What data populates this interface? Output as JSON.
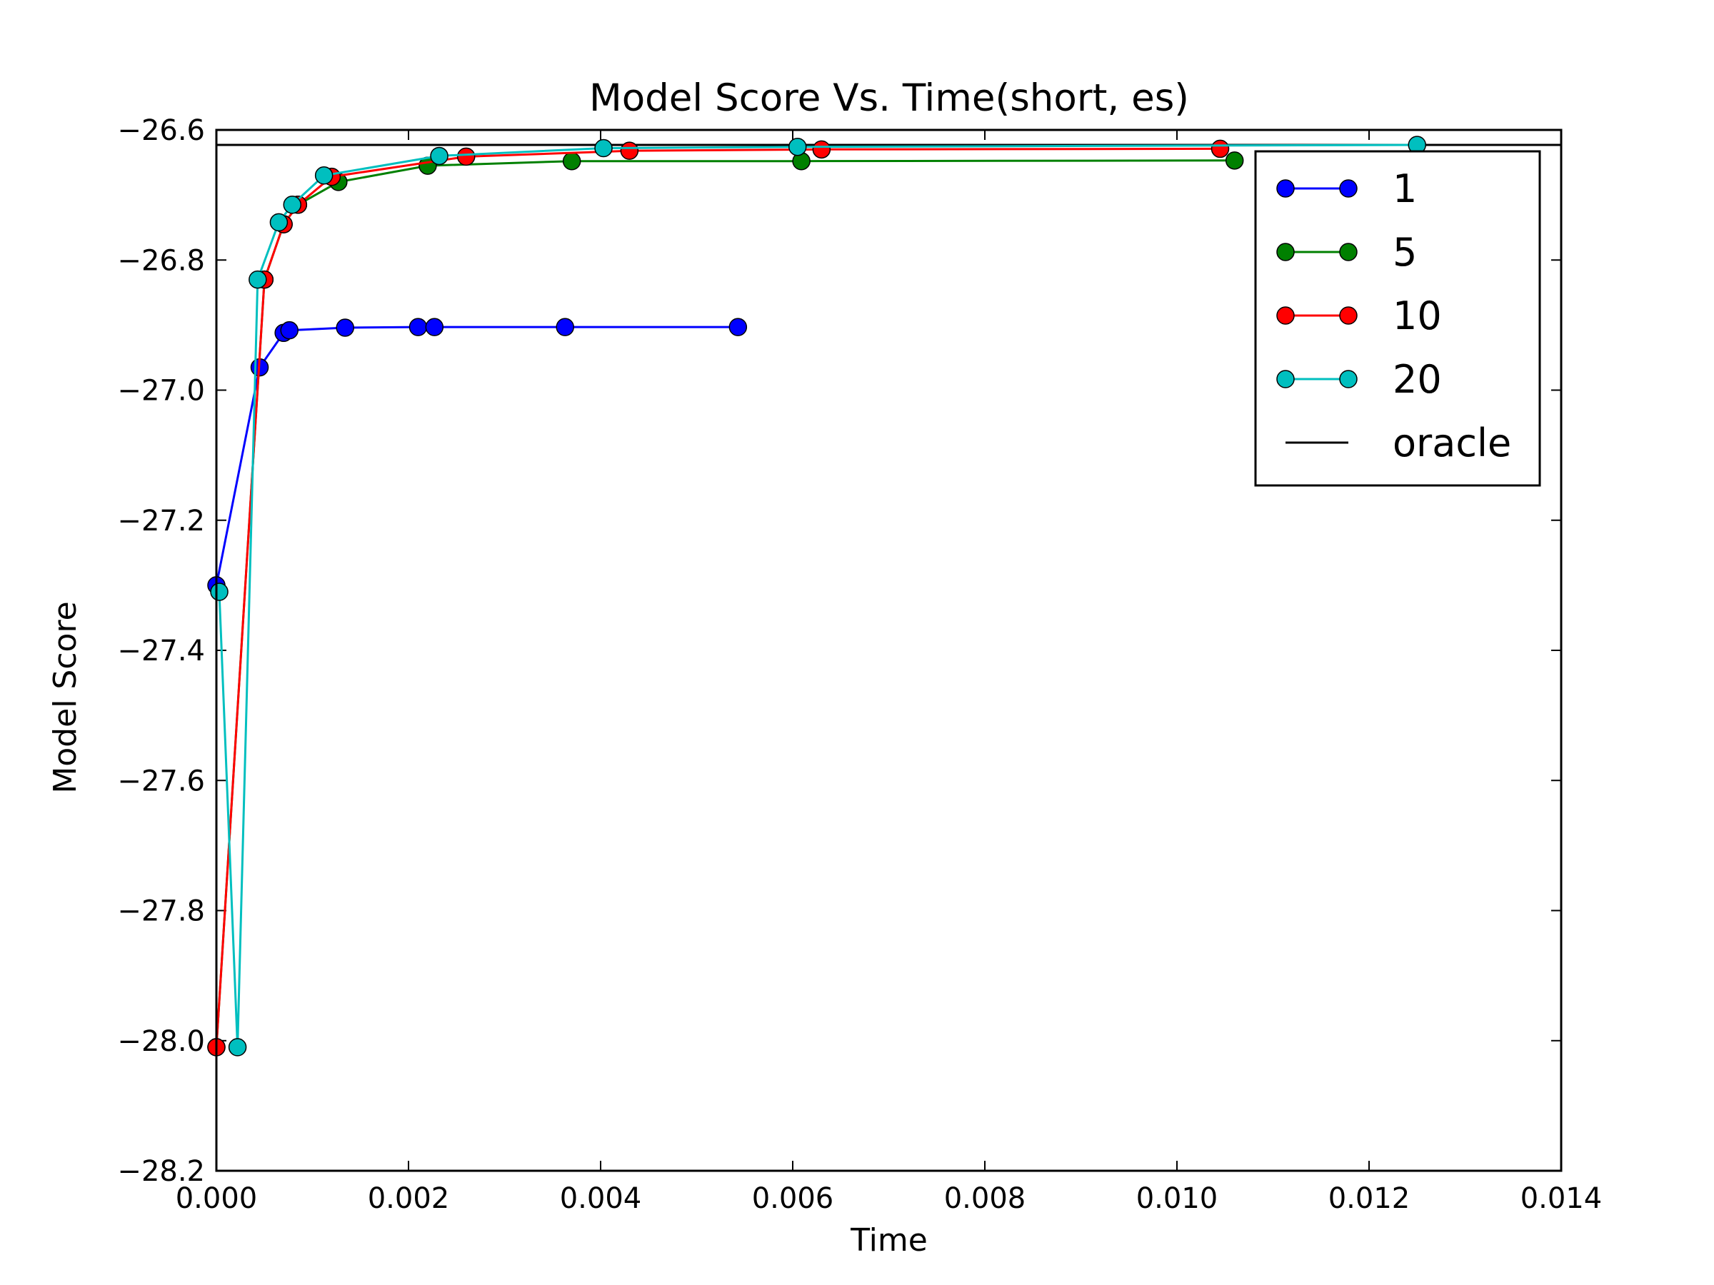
{
  "chart_data": {
    "type": "line",
    "title": "Model Score Vs. Time(short, es)",
    "xlabel": "Time",
    "ylabel": "Model Score",
    "xlim": [
      0.0,
      0.014
    ],
    "ylim": [
      -28.2,
      -26.6
    ],
    "xticks": [
      "0.000",
      "0.002",
      "0.004",
      "0.006",
      "0.008",
      "0.010",
      "0.012",
      "0.014"
    ],
    "xtick_values": [
      0.0,
      0.002,
      0.004,
      0.006,
      0.008,
      0.01,
      0.012,
      0.014
    ],
    "yticks": [
      "−28.2",
      "−28.0",
      "−27.8",
      "−27.6",
      "−27.4",
      "−27.2",
      "−27.0",
      "−26.8",
      "−26.6"
    ],
    "ytick_values": [
      -28.2,
      -28.0,
      -27.8,
      -27.6,
      -27.4,
      -27.2,
      -27.0,
      -26.8,
      -26.6
    ],
    "grid": false,
    "legend_position": "top-right",
    "series": [
      {
        "name": "1",
        "color": "#0000ff",
        "marker": "circle",
        "x": [
          0.0,
          0.00045,
          0.0007,
          0.00076,
          0.00134,
          0.0021,
          0.00227,
          0.00363,
          0.00543
        ],
        "y": [
          -27.3,
          -26.965,
          -26.912,
          -26.908,
          -26.904,
          -26.903,
          -26.903,
          -26.903,
          -26.903
        ]
      },
      {
        "name": "5",
        "color": "#008000",
        "marker": "circle",
        "x": [
          0.0,
          0.0005,
          0.0007,
          0.00085,
          0.00127,
          0.0022,
          0.0037,
          0.00609,
          0.0106
        ],
        "y": [
          -28.01,
          -26.83,
          -26.745,
          -26.715,
          -26.68,
          -26.655,
          -26.648,
          -26.648,
          -26.647
        ]
      },
      {
        "name": "10",
        "color": "#ff0000",
        "marker": "circle",
        "x": [
          0.0,
          0.0005,
          0.0007,
          0.00085,
          0.0012,
          0.0026,
          0.0043,
          0.0063,
          0.01045
        ],
        "y": [
          -28.01,
          -26.83,
          -26.745,
          -26.715,
          -26.672,
          -26.641,
          -26.632,
          -26.63,
          -26.629
        ]
      },
      {
        "name": "20",
        "color": "#00bfbf",
        "marker": "circle",
        "x": [
          3e-05,
          0.00022,
          0.00043,
          0.00065,
          0.00079,
          0.00112,
          0.00232,
          0.00403,
          0.00605,
          0.0125
        ],
        "y": [
          -27.31,
          -28.01,
          -26.83,
          -26.742,
          -26.715,
          -26.67,
          -26.64,
          -26.628,
          -26.626,
          -26.623
        ]
      },
      {
        "name": "oracle",
        "color": "#000000",
        "marker": "none",
        "x": [
          0.0,
          0.014
        ],
        "y": [
          -26.623,
          -26.623
        ]
      }
    ]
  }
}
